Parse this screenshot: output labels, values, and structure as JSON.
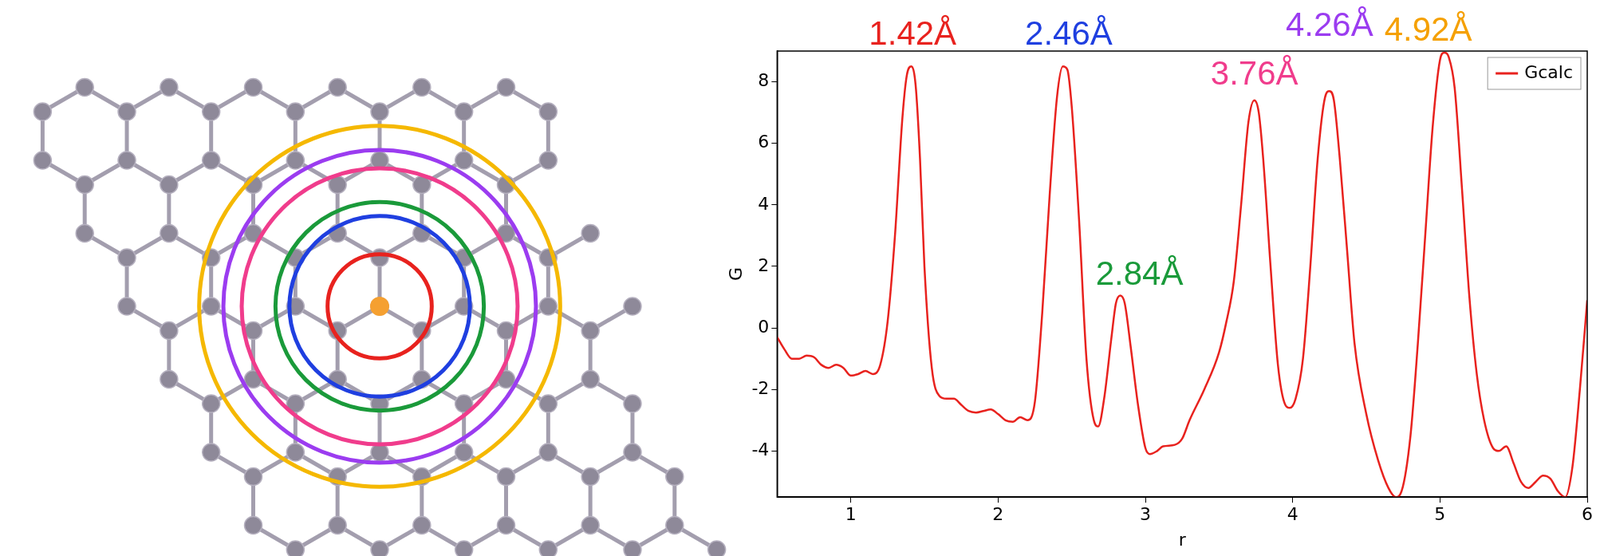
{
  "chart_data": {
    "type": "line",
    "x": [
      0.5,
      0.55,
      0.6,
      0.65,
      0.7,
      0.75,
      0.8,
      0.85,
      0.9,
      0.95,
      1.0,
      1.05,
      1.1,
      1.15,
      1.2,
      1.25,
      1.3,
      1.35,
      1.38,
      1.41,
      1.44,
      1.47,
      1.5,
      1.55,
      1.6,
      1.65,
      1.7,
      1.75,
      1.8,
      1.85,
      1.9,
      1.95,
      2.0,
      2.05,
      2.1,
      2.15,
      2.2,
      2.25,
      2.3,
      2.35,
      2.4,
      2.44,
      2.47,
      2.5,
      2.55,
      2.6,
      2.65,
      2.68,
      2.72,
      2.77,
      2.8,
      2.83,
      2.86,
      2.9,
      2.95,
      3.0,
      3.03,
      3.08,
      3.12,
      3.2,
      3.25,
      3.3,
      3.4,
      3.5,
      3.55,
      3.6,
      3.65,
      3.7,
      3.74,
      3.77,
      3.8,
      3.85,
      3.9,
      3.95,
      3.98,
      4.02,
      4.07,
      4.12,
      4.17,
      4.22,
      4.25,
      4.28,
      4.32,
      4.37,
      4.42,
      4.5,
      4.58,
      4.65,
      4.7,
      4.74,
      4.8,
      4.85,
      4.9,
      4.95,
      5.0,
      5.03,
      5.06,
      5.1,
      5.15,
      5.2,
      5.25,
      5.3,
      5.36,
      5.4,
      5.45,
      5.5,
      5.55,
      5.6,
      5.65,
      5.7,
      5.75,
      5.8,
      5.85,
      5.9,
      5.95,
      6.0
    ],
    "series": [
      {
        "name": "Gcalc",
        "color": "#e8221e",
        "values": [
          -0.3,
          -0.7,
          -1.0,
          -1.0,
          -0.9,
          -0.95,
          -1.2,
          -1.3,
          -1.2,
          -1.3,
          -1.55,
          -1.5,
          -1.4,
          -1.5,
          -1.2,
          0.2,
          3.0,
          6.8,
          8.2,
          8.5,
          7.9,
          5.5,
          2.0,
          -1.3,
          -2.2,
          -2.3,
          -2.3,
          -2.5,
          -2.7,
          -2.75,
          -2.7,
          -2.65,
          -2.8,
          -3.0,
          -3.05,
          -2.9,
          -3.0,
          -2.4,
          0.5,
          4.3,
          7.5,
          8.5,
          8.4,
          7.2,
          3.5,
          -1.0,
          -3.0,
          -3.2,
          -2.3,
          -0.3,
          0.8,
          1.05,
          0.8,
          -0.6,
          -2.5,
          -3.9,
          -4.1,
          -4.0,
          -3.85,
          -3.8,
          -3.6,
          -3.0,
          -2.0,
          -0.8,
          0.2,
          1.5,
          4.0,
          6.7,
          7.4,
          7.0,
          5.5,
          2.0,
          -1.2,
          -2.5,
          -2.6,
          -2.3,
          -1.0,
          2.0,
          5.5,
          7.5,
          7.7,
          7.4,
          5.5,
          2.5,
          -0.5,
          -2.8,
          -4.3,
          -5.2,
          -5.5,
          -5.3,
          -3.5,
          -0.5,
          3.0,
          6.5,
          8.7,
          8.95,
          8.8,
          7.8,
          4.5,
          1.0,
          -1.5,
          -3.0,
          -3.9,
          -4.0,
          -3.85,
          -4.4,
          -5.0,
          -5.2,
          -5.0,
          -4.8,
          -4.9,
          -5.3,
          -5.5,
          -4.5,
          -2.0,
          0.9
        ]
      }
    ],
    "xlim": [
      0.5,
      6
    ],
    "ylim": [
      -5.5,
      9
    ],
    "xticks": [
      1,
      2,
      3,
      4,
      5,
      6
    ],
    "yticks": [
      -4,
      -2,
      0,
      2,
      4,
      6,
      8
    ],
    "xlabel": "r",
    "ylabel": "G",
    "legend": "upper right",
    "grid": false,
    "annotations": [
      {
        "text": "1.42Å",
        "x": 1.42,
        "y": 9.5,
        "color": "#e8221e"
      },
      {
        "text": "2.46Å",
        "x": 2.48,
        "y": 9.5,
        "color": "#1f3fe0"
      },
      {
        "text": "2.84Å",
        "x": 2.96,
        "y": 1.7,
        "color": "#1a9a3a"
      },
      {
        "text": "3.76Å",
        "x": 3.74,
        "y": 8.2,
        "color": "#f03c8c"
      },
      {
        "text": "4.26Å",
        "x": 4.25,
        "y": 9.8,
        "color": "#9b3cf0"
      },
      {
        "text": "4.92Å",
        "x": 4.92,
        "y": 9.65,
        "color": "#f5a000"
      }
    ]
  },
  "diagram": {
    "shells": [
      {
        "distance": 1.42,
        "color": "#e8221e"
      },
      {
        "distance": 2.46,
        "color": "#1f3fe0"
      },
      {
        "distance": 2.84,
        "color": "#1a9a3a"
      },
      {
        "distance": 3.76,
        "color": "#f03c8c"
      },
      {
        "distance": 4.26,
        "color": "#9b3cf0"
      },
      {
        "distance": 4.92,
        "color": "#f5b800"
      }
    ]
  }
}
